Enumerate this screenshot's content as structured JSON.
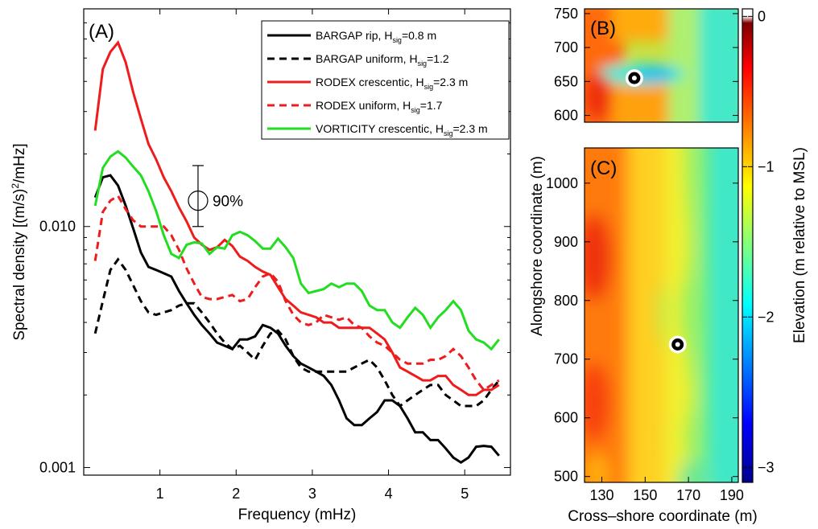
{
  "chart_data": [
    {
      "type": "line",
      "panel_label": "(A)",
      "xlabel": "Frequency (mHz)",
      "ylabel_parts": [
        "Spectral density [(m/s)",
        "2",
        "/mHz]"
      ],
      "x_ticks": [
        "1",
        "2",
        "3",
        "4",
        "5"
      ],
      "y_ticks": [
        "0.001",
        "0.010"
      ],
      "xlim": [
        0,
        5.6
      ],
      "ylim": [
        0.00093,
        0.08
      ],
      "y_scale": "log",
      "grid": false,
      "legend_placement": "top-right",
      "x": [
        0.15,
        0.25,
        0.35,
        0.45,
        0.55,
        0.65,
        0.75,
        0.85,
        0.95,
        1.05,
        1.15,
        1.25,
        1.35,
        1.45,
        1.55,
        1.65,
        1.75,
        1.85,
        1.95,
        2.05,
        2.15,
        2.25,
        2.35,
        2.45,
        2.55,
        2.65,
        2.75,
        2.85,
        2.95,
        3.05,
        3.15,
        3.25,
        3.35,
        3.45,
        3.55,
        3.65,
        3.75,
        3.85,
        3.95,
        4.05,
        4.15,
        4.25,
        4.35,
        4.45,
        4.55,
        4.65,
        4.75,
        4.85,
        4.95,
        5.05,
        5.15,
        5.25,
        5.35,
        5.45
      ],
      "series": [
        {
          "name": "BARGAP rip",
          "legend_main": "BARGAP rip, H",
          "legend_sub": "sig",
          "legend_tail": "=0.8 m",
          "color": "#000000",
          "dash": "solid",
          "values": [
            0.0132,
            0.016,
            0.0163,
            0.0148,
            0.0122,
            0.0098,
            0.0078,
            0.0068,
            0.0066,
            0.0064,
            0.0062,
            0.0054,
            0.0048,
            0.0043,
            0.0039,
            0.0036,
            0.0033,
            0.0032,
            0.0031,
            0.0034,
            0.0034,
            0.0035,
            0.0039,
            0.0038,
            0.0036,
            0.0032,
            0.0029,
            0.0027,
            0.0026,
            0.0025,
            0.0024,
            0.0022,
            0.0019,
            0.0016,
            0.0015,
            0.0015,
            0.0016,
            0.0017,
            0.0019,
            0.0019,
            0.0018,
            0.0016,
            0.0014,
            0.0014,
            0.0013,
            0.0013,
            0.0012,
            0.0011,
            0.00105,
            0.0011,
            0.00122,
            0.00123,
            0.00122,
            0.00112
          ]
        },
        {
          "name": "BARGAP uniform",
          "legend_main": "BARGAP uniform, H",
          "legend_sub": "sig",
          "legend_tail": "=1.2",
          "color": "#000000",
          "dash": "dashed",
          "values": [
            0.0036,
            0.0049,
            0.0066,
            0.0073,
            0.0066,
            0.0057,
            0.0049,
            0.0044,
            0.0043,
            0.0044,
            0.0045,
            0.0047,
            0.0048,
            0.0048,
            0.0044,
            0.004,
            0.0036,
            0.0033,
            0.0031,
            0.0032,
            0.003,
            0.0028,
            0.0032,
            0.0036,
            0.0037,
            0.0034,
            0.0029,
            0.0026,
            0.0025,
            0.0025,
            0.0025,
            0.0025,
            0.0025,
            0.0025,
            0.0026,
            0.0027,
            0.0028,
            0.0026,
            0.0023,
            0.002,
            0.0018,
            0.0019,
            0.002,
            0.0021,
            0.0022,
            0.0022,
            0.002,
            0.0019,
            0.0018,
            0.0018,
            0.0018,
            0.0019,
            0.0021,
            0.0023
          ]
        },
        {
          "name": "RODEX crescentic",
          "legend_main": "RODEX crescentic, H",
          "legend_sub": "sig",
          "legend_tail": "=2.3 m",
          "color": "#ee1c1c",
          "dash": "solid",
          "values": [
            0.025,
            0.045,
            0.053,
            0.058,
            0.048,
            0.036,
            0.028,
            0.022,
            0.019,
            0.016,
            0.014,
            0.012,
            0.0105,
            0.009,
            0.0084,
            0.008,
            0.0082,
            0.0088,
            0.0083,
            0.0075,
            0.0072,
            0.0068,
            0.0065,
            0.0063,
            0.0056,
            0.005,
            0.0047,
            0.0044,
            0.0043,
            0.0042,
            0.004,
            0.004,
            0.0038,
            0.0038,
            0.0038,
            0.0038,
            0.0038,
            0.0036,
            0.0034,
            0.003,
            0.0026,
            0.0025,
            0.0024,
            0.0023,
            0.0023,
            0.0024,
            0.0024,
            0.0022,
            0.0021,
            0.002,
            0.002,
            0.0021,
            0.0021,
            0.0022
          ]
        },
        {
          "name": "RODEX uniform",
          "legend_main": "RODEX uniform, H",
          "legend_sub": "sig",
          "legend_tail": "=1.7",
          "color": "#ee1c1c",
          "dash": "dashed",
          "values": [
            0.0072,
            0.0115,
            0.0128,
            0.0134,
            0.0118,
            0.0106,
            0.01,
            0.01,
            0.01,
            0.01,
            0.0092,
            0.008,
            0.0067,
            0.0058,
            0.0051,
            0.005,
            0.005,
            0.0051,
            0.0052,
            0.0049,
            0.005,
            0.0056,
            0.0062,
            0.0064,
            0.0059,
            0.0049,
            0.0043,
            0.004,
            0.0039,
            0.004,
            0.0043,
            0.0042,
            0.0041,
            0.0042,
            0.0039,
            0.0038,
            0.0035,
            0.0033,
            0.0032,
            0.003,
            0.0028,
            0.0027,
            0.0027,
            0.0027,
            0.0028,
            0.0028,
            0.0029,
            0.0031,
            0.0029,
            0.0026,
            0.0023,
            0.0021,
            0.0022,
            0.0023
          ]
        },
        {
          "name": "VORTICITY crescentic",
          "legend_main": "VORTICITY crescentic, H",
          "legend_sub": "sig",
          "legend_tail": "=2.3 m",
          "color": "#22dd22",
          "dash": "solid",
          "values": [
            0.0122,
            0.0175,
            0.0195,
            0.0205,
            0.0193,
            0.0177,
            0.0163,
            0.014,
            0.0116,
            0.0092,
            0.0077,
            0.0074,
            0.0084,
            0.0086,
            0.0085,
            0.0077,
            0.0082,
            0.0081,
            0.0092,
            0.0095,
            0.0092,
            0.0087,
            0.0081,
            0.0081,
            0.0089,
            0.0082,
            0.0074,
            0.0058,
            0.0053,
            0.0054,
            0.0055,
            0.0058,
            0.0056,
            0.0058,
            0.0058,
            0.0054,
            0.0047,
            0.0045,
            0.0045,
            0.004,
            0.0038,
            0.0042,
            0.0046,
            0.0043,
            0.0038,
            0.0042,
            0.0045,
            0.0049,
            0.0045,
            0.0037,
            0.0034,
            0.0033,
            0.0031,
            0.0034
          ]
        }
      ],
      "annotation": {
        "text": "90%",
        "x": 1.5,
        "y": 0.0128,
        "ci_low": 0.01,
        "ci_high": 0.0179
      }
    },
    {
      "type": "heatmap",
      "panel_label": "(B)",
      "y_ticks": [
        "600",
        "650",
        "700",
        "750"
      ],
      "y_tick_values": [
        600,
        650,
        700,
        750
      ],
      "ylim": [
        590,
        757
      ],
      "xlim": [
        122,
        193
      ],
      "marker": {
        "x": 145,
        "y": 655
      }
    },
    {
      "type": "heatmap",
      "panel_label": "(C)",
      "xlabel": "Cross–shore coordinate (m)",
      "ylabel": "Alongshore coordinate (m)",
      "x_ticks": [
        "130",
        "150",
        "170",
        "190"
      ],
      "x_tick_values": [
        130,
        150,
        170,
        190
      ],
      "y_ticks": [
        "500",
        "600",
        "700",
        "800",
        "900",
        "1000"
      ],
      "y_tick_values": [
        500,
        600,
        700,
        800,
        900,
        1000
      ],
      "xlim": [
        122,
        193
      ],
      "ylim": [
        490,
        1060
      ],
      "marker": {
        "x": 165,
        "y": 725
      }
    },
    {
      "type": "colorbar",
      "label": "Elevation (m relative to MSL)",
      "ticks": [
        "0",
        "−1",
        "−2",
        "−3"
      ],
      "tick_values": [
        0,
        -1,
        -2,
        -3
      ],
      "range": [
        -3.1,
        0.05
      ],
      "colormap": "jet"
    }
  ]
}
